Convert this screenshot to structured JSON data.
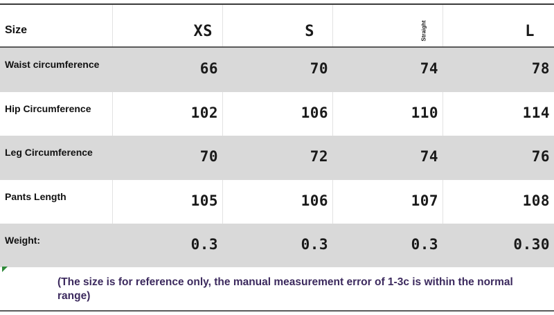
{
  "table": {
    "header": {
      "row_label": "Size",
      "columns": [
        "XS",
        "S",
        "",
        "L"
      ],
      "rotated_note": "Straight"
    },
    "rows": [
      {
        "label": "Waist circumference",
        "values": [
          "66",
          "70",
          "74",
          "78"
        ]
      },
      {
        "label": "Hip Circumference",
        "values": [
          "102",
          "106",
          "110",
          "114"
        ]
      },
      {
        "label": "Leg Circumference",
        "values": [
          "70",
          "72",
          "74",
          "76"
        ]
      },
      {
        "label": "Pants Length",
        "values": [
          "105",
          "106",
          "107",
          "108"
        ]
      },
      {
        "label": "Weight:",
        "values": [
          "0.3",
          "0.3",
          "0.3",
          "0.30"
        ]
      }
    ]
  },
  "note": "(The size is for reference only, the manual measurement error of 1-3c is within the normal range)",
  "colors": {
    "band_gray": "#d9d9d9",
    "note_text": "#3c2a5e",
    "corner_mark": "#2f8a3a"
  }
}
